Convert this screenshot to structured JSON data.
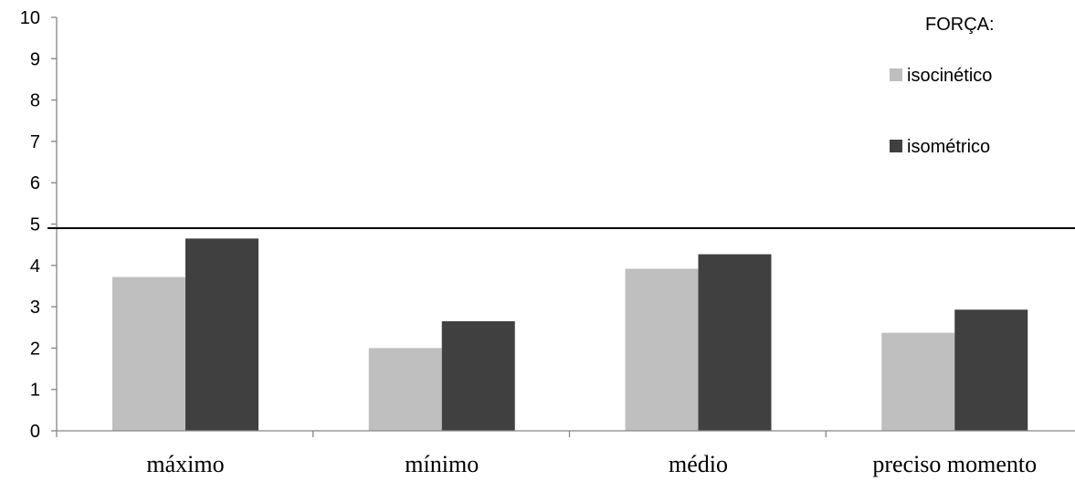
{
  "chart_data": {
    "type": "bar",
    "categories": [
      "máximo",
      "mínimo",
      "médio",
      "preciso momento"
    ],
    "series": [
      {
        "name": "isocinético",
        "color": "#bfbfbf",
        "values": [
          3.72,
          2.0,
          3.92,
          2.37
        ]
      },
      {
        "name": "isométrico",
        "color": "#404040",
        "values": [
          4.65,
          2.65,
          4.27,
          2.93
        ]
      }
    ],
    "ylim": [
      0,
      10
    ],
    "yticks": [
      "0",
      "1",
      "2",
      "3",
      "4",
      "5",
      "6",
      "7",
      "8",
      "9",
      "10"
    ],
    "reference_line": 4.9,
    "legend": {
      "title": "FORÇA:",
      "placement": "top-right"
    },
    "grid": false,
    "xlabel": "",
    "ylabel": ""
  }
}
